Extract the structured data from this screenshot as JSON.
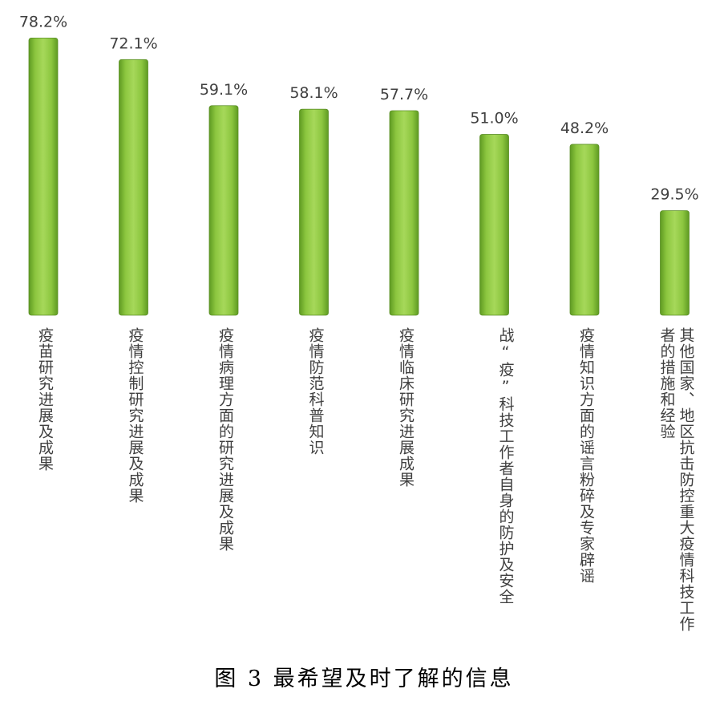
{
  "chart_data": {
    "type": "bar",
    "categories": [
      "疫苗研究进展及成果",
      "疫情控制研究进展及成果",
      "疫情病理方面的研究进展及成果",
      "疫情防范科普知识",
      "疫情临床研究进展成果",
      "战“疫”科技工作者自身的防护及安全",
      "疫情知识方面的谣言粉碎及专家辟谣",
      "其他国家、地区抗击防控重大疫情科技工作者的措施和经验"
    ],
    "values": [
      78.2,
      72.1,
      59.1,
      58.1,
      57.7,
      51.0,
      48.2,
      29.5
    ],
    "value_labels": [
      "78.2%",
      "72.1%",
      "59.1%",
      "58.1%",
      "57.7%",
      "51.0%",
      "48.2%",
      "29.5%"
    ],
    "bar_color": "#8cc63f",
    "grid": false,
    "legend": "none"
  },
  "caption": "图 3 最希望及时了解的信息"
}
